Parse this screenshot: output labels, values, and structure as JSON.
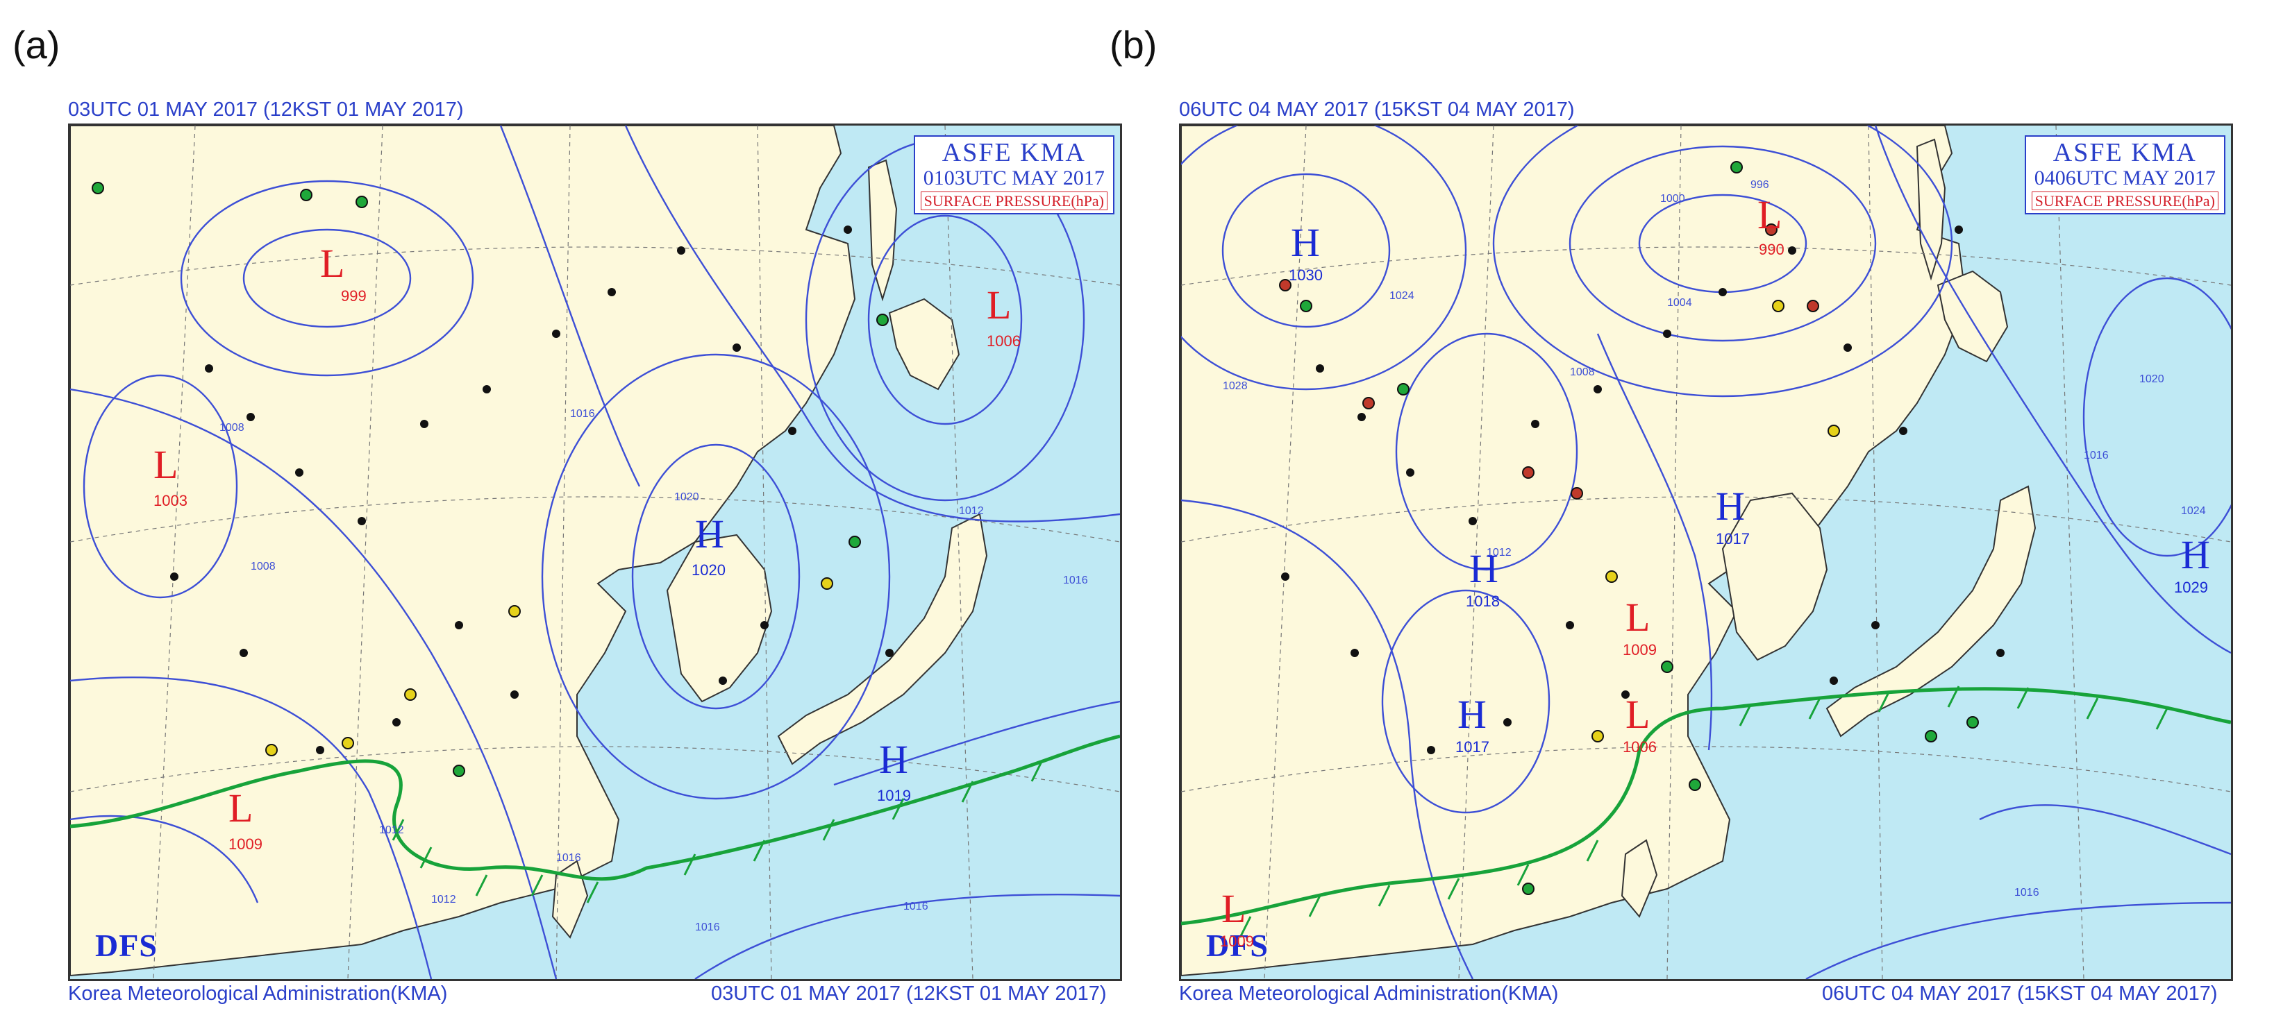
{
  "panels": [
    {
      "letter": "(a)",
      "valid_time": "03UTC 01 MAY 2017 (12KST 01 MAY 2017)",
      "footer_left": "Korea Meteorological Administration(KMA)",
      "footer_right": "03UTC 01 MAY 2017 (12KST 01 MAY 2017)",
      "stamp": {
        "line1": "ASFE  KMA",
        "line2": "0103UTC MAY 2017",
        "line3": "SURFACE PRESSURE(hPa)"
      },
      "logo": "DFS",
      "systems": [
        {
          "type": "L",
          "value": "999"
        },
        {
          "type": "L",
          "value": "1006"
        },
        {
          "type": "L",
          "value": "1003"
        },
        {
          "type": "H",
          "value": "1020"
        },
        {
          "type": "H",
          "value": "1019"
        },
        {
          "type": "L",
          "value": "1009"
        }
      ],
      "isobar_labels": [
        "1008",
        "1012",
        "1016",
        "1020",
        "1012",
        "1016",
        "1008",
        "1012",
        "1016",
        "1016",
        "1016"
      ]
    },
    {
      "letter": "(b)",
      "valid_time": "06UTC 04 MAY 2017 (15KST 04 MAY 2017)",
      "footer_left": "Korea Meteorological Administration(KMA)",
      "footer_right": "06UTC 04 MAY 2017 (15KST 04 MAY 2017)",
      "stamp": {
        "line1": "ASFE  KMA",
        "line2": "0406UTC MAY 2017",
        "line3": "SURFACE PRESSURE(hPa)"
      },
      "logo": "DFS",
      "systems": [
        {
          "type": "H",
          "value": "1030"
        },
        {
          "type": "L",
          "value": "990"
        },
        {
          "type": "H",
          "value": "1029"
        },
        {
          "type": "H",
          "value": "1018"
        },
        {
          "type": "H",
          "value": "1017"
        },
        {
          "type": "L",
          "value": "1009"
        },
        {
          "type": "H",
          "value": "1017"
        },
        {
          "type": "L",
          "value": "1006"
        },
        {
          "type": "L",
          "value": "1009"
        }
      ],
      "isobar_labels": [
        "1028",
        "1024",
        "1000",
        "996",
        "1004",
        "1008",
        "1012",
        "1016",
        "1020",
        "1024",
        "1016"
      ]
    }
  ],
  "colors": {
    "ocean": "#bfe9f4",
    "land": "#fdf9dc",
    "isobar": "#3d4fd6",
    "coast": "#333333",
    "front": "#17a33a",
    "low": "#e01e25",
    "high": "#1a2bd4",
    "label": "#2a3fc9"
  }
}
